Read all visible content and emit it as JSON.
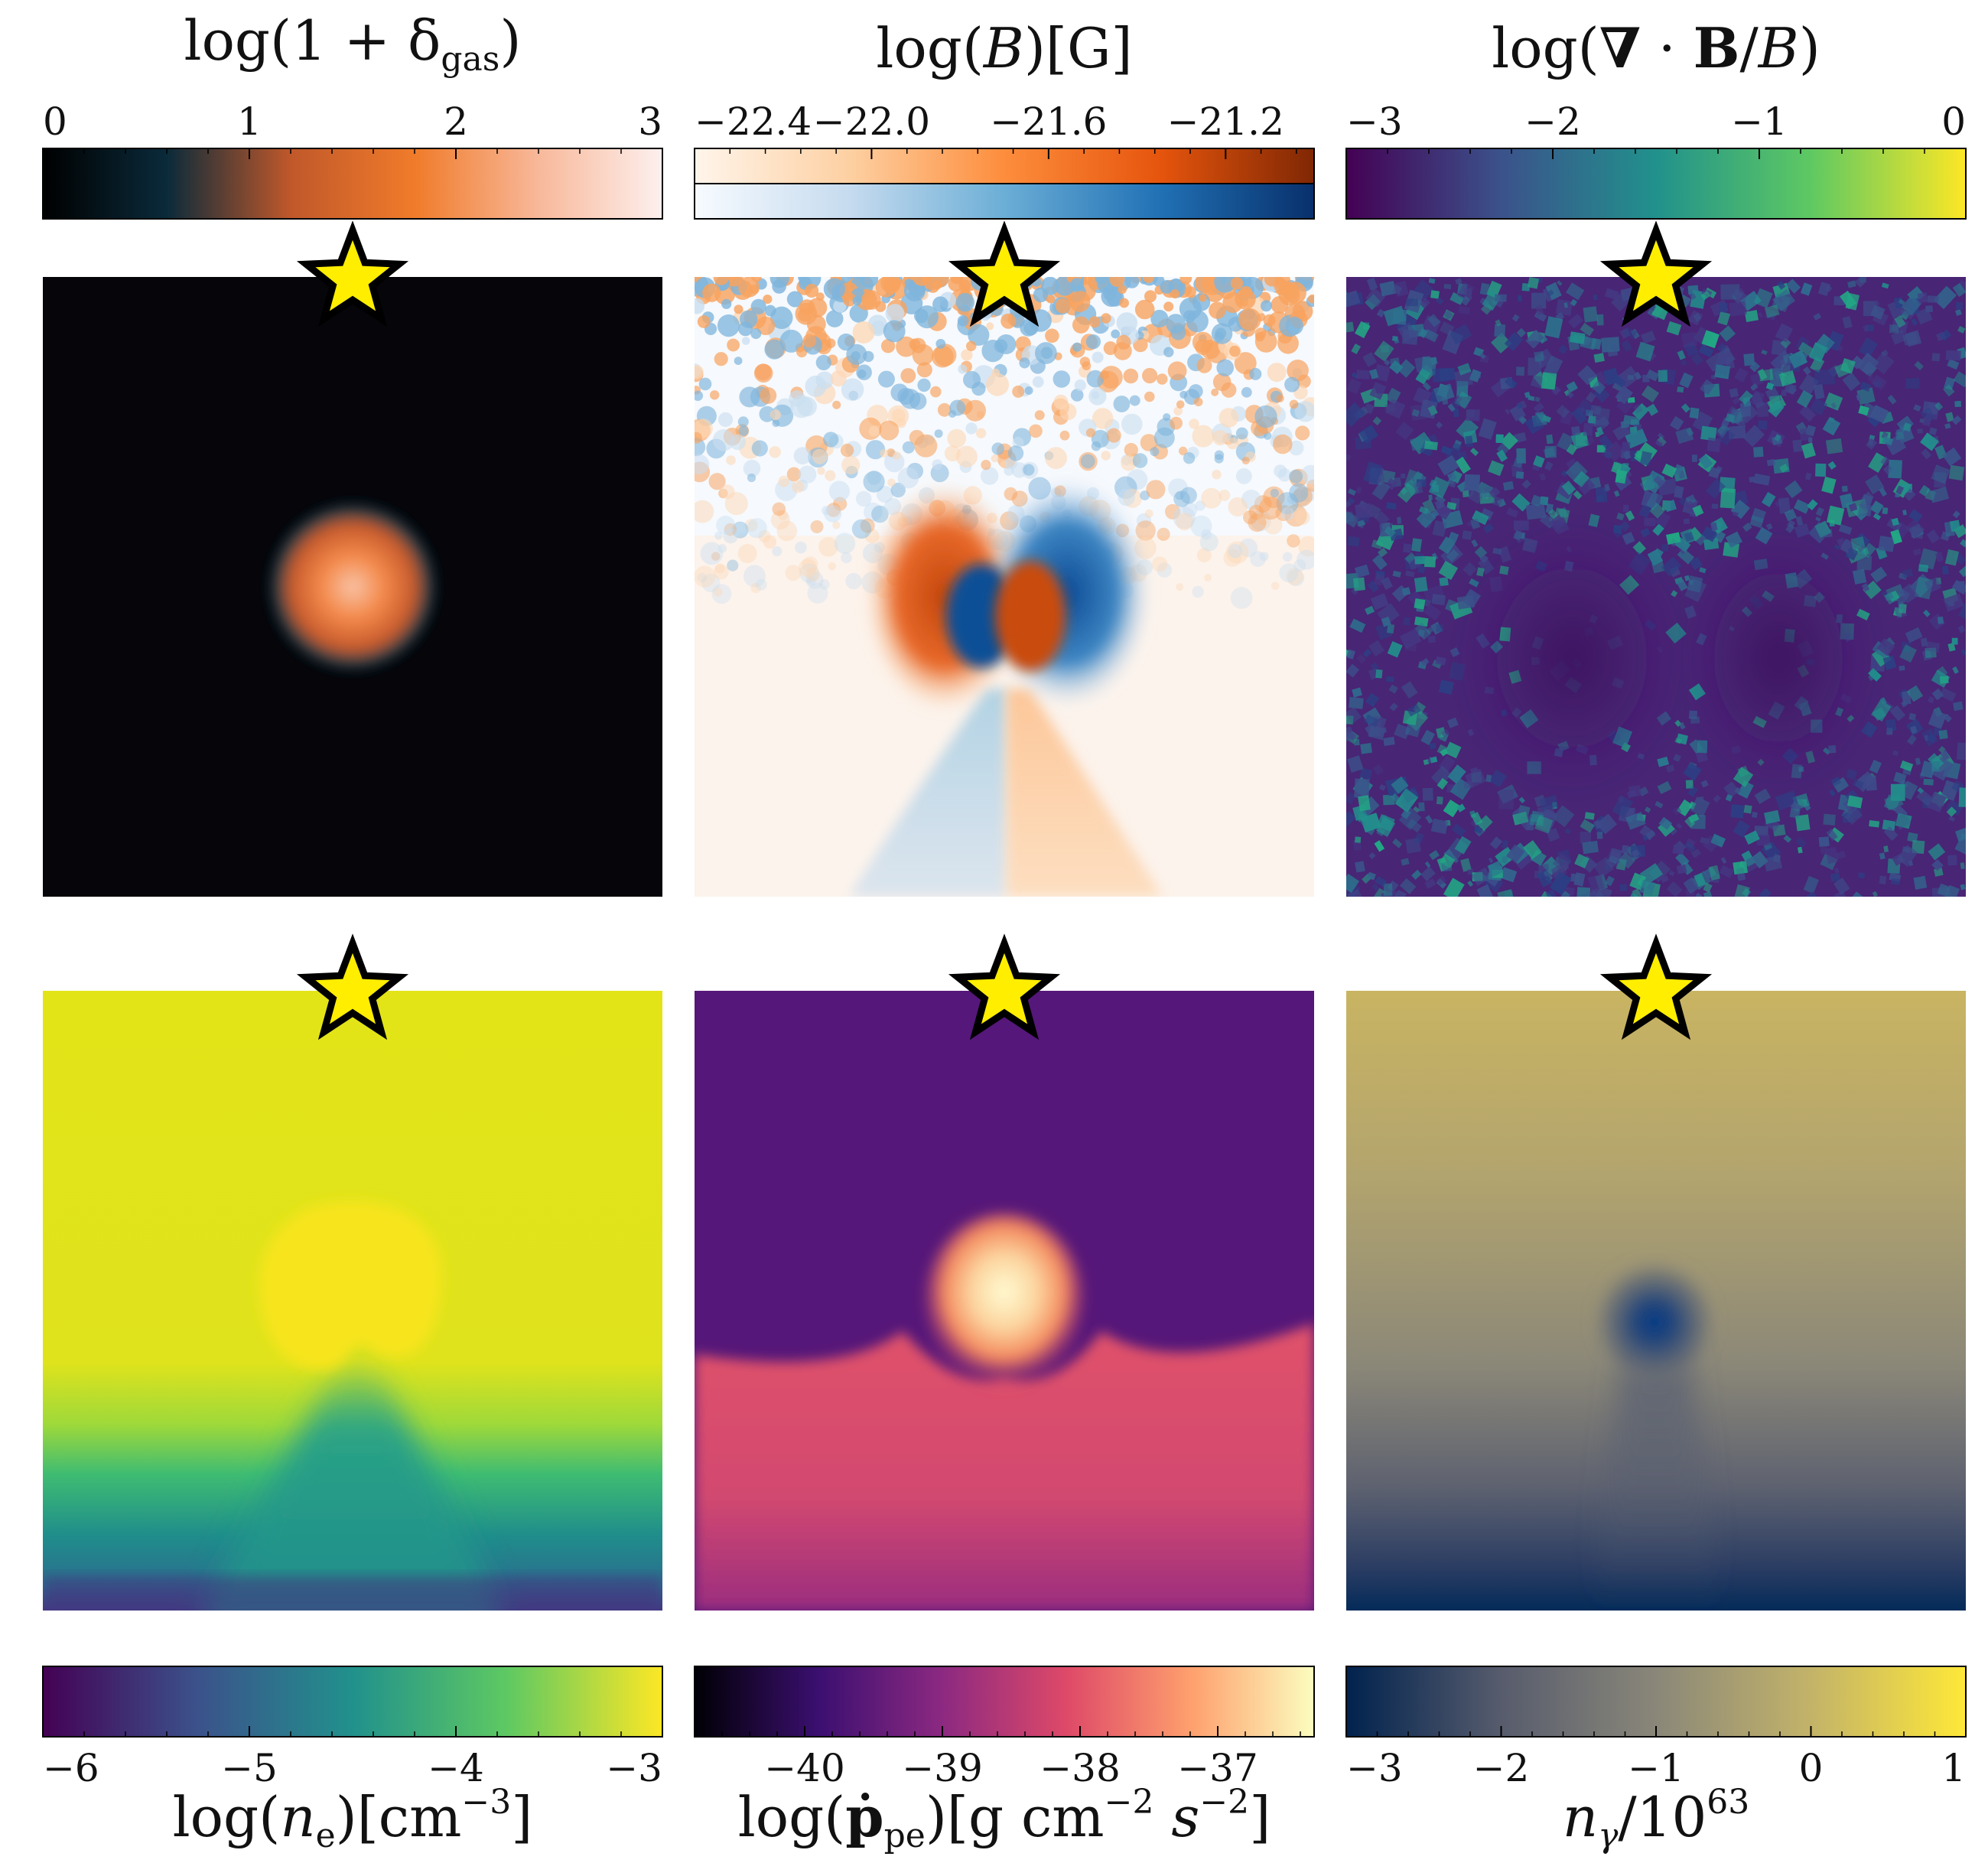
{
  "chart_data": [
    {
      "type": "heatmap",
      "title": "log(1 + δgas)",
      "colorbar": {
        "position": "top",
        "colors": [
          "#000000",
          "#0a2a3a",
          "#c0582a",
          "#f07b2a",
          "#f8b89a",
          "#fdf0ee"
        ],
        "ticks": [
          0,
          1,
          2,
          3
        ],
        "tick_labels": [
          "0",
          "1",
          "2",
          "3"
        ],
        "range": [
          0,
          3
        ]
      },
      "marker": "star"
    },
    {
      "type": "heatmap",
      "title": "log(B)[G]",
      "colorbar": {
        "position": "top",
        "dual": true,
        "colors_top": [
          "#fff5eb",
          "#fdd0a2",
          "#fd8d3c",
          "#e6550d",
          "#7f2704"
        ],
        "colors_bottom": [
          "#f7fbff",
          "#c6dbef",
          "#6baed6",
          "#2171b5",
          "#08306b"
        ],
        "ticks": [
          -22.4,
          -22.0,
          -21.6,
          -21.2
        ],
        "tick_labels": [
          "−22.4",
          "−22.0",
          "−21.6",
          "−21.2"
        ],
        "range": [
          -22.4,
          -21.0
        ]
      },
      "marker": "star"
    },
    {
      "type": "heatmap",
      "title": "log(∇ · B/B)",
      "colorbar": {
        "position": "top",
        "colors": [
          "#440154",
          "#3b528b",
          "#21918c",
          "#5ec962",
          "#fde725"
        ],
        "ticks": [
          -3,
          -2,
          -1,
          0
        ],
        "tick_labels": [
          "−3",
          "−2",
          "−1",
          "0"
        ],
        "range": [
          -3,
          0
        ]
      },
      "marker": "star"
    },
    {
      "type": "heatmap",
      "title": "log(ne)[cm−3]",
      "colorbar": {
        "position": "bottom",
        "colors": [
          "#440154",
          "#3b528b",
          "#21918c",
          "#5ec962",
          "#fde725"
        ],
        "ticks": [
          -6,
          -5,
          -4,
          -3
        ],
        "tick_labels": [
          "−6",
          "−5",
          "−4",
          "−3"
        ],
        "range": [
          -6,
          -3
        ]
      },
      "marker": "star"
    },
    {
      "type": "heatmap",
      "title": "log(ṗpe)[g cm−2 s−2]",
      "colorbar": {
        "position": "bottom",
        "colors": [
          "#000004",
          "#3b0f70",
          "#8c2981",
          "#de4968",
          "#fe9f6d",
          "#fcfdbf"
        ],
        "ticks": [
          -40,
          -39,
          -38,
          -37
        ],
        "tick_labels": [
          "−40",
          "−39",
          "−38",
          "−37"
        ],
        "range": [
          -40.8,
          -36.3
        ]
      },
      "marker": "star"
    },
    {
      "type": "heatmap",
      "title": "nγ/1063",
      "colorbar": {
        "position": "bottom",
        "colors": [
          "#00224e",
          "#575c6d",
          "#8a8779",
          "#c3b369",
          "#fee838"
        ],
        "ticks": [
          -3,
          -2,
          -1,
          0,
          1
        ],
        "tick_labels": [
          "−3",
          "−2",
          "−1",
          "0",
          "1"
        ],
        "range": [
          -3,
          1
        ]
      },
      "marker": "star"
    }
  ]
}
